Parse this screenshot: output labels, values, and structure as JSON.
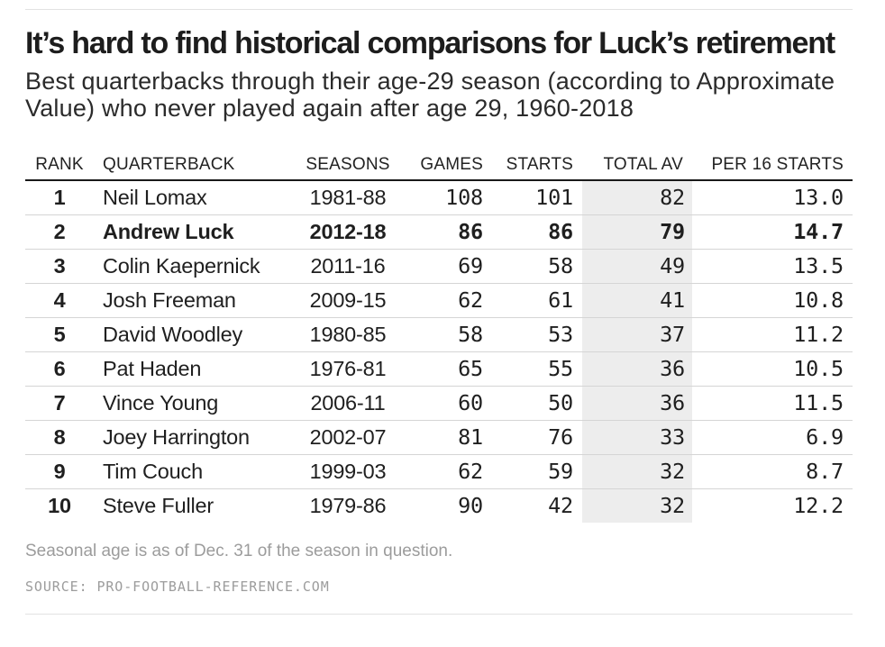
{
  "header": {
    "title": "It’s hard to find historical comparisons for Luck’s retirement",
    "subtitle": "Best quarterbacks through their age-29 season (according to Approximate Value) who never played again after age 29, 1960-2018"
  },
  "table": {
    "columns": [
      "RANK",
      "QUARTERBACK",
      "SEASONS",
      "GAMES",
      "STARTS",
      "TOTAL AV",
      "PER 16 STARTS"
    ],
    "rows": [
      {
        "rank": "1",
        "quarterback": "Neil Lomax",
        "seasons": "1981-88",
        "games": "108",
        "starts": "101",
        "total_av": "82",
        "per16": "13.0",
        "highlight": false
      },
      {
        "rank": "2",
        "quarterback": "Andrew Luck",
        "seasons": "2012-18",
        "games": "86",
        "starts": "86",
        "total_av": "79",
        "per16": "14.7",
        "highlight": true
      },
      {
        "rank": "3",
        "quarterback": "Colin Kaepernick",
        "seasons": "2011-16",
        "games": "69",
        "starts": "58",
        "total_av": "49",
        "per16": "13.5",
        "highlight": false
      },
      {
        "rank": "4",
        "quarterback": "Josh Freeman",
        "seasons": "2009-15",
        "games": "62",
        "starts": "61",
        "total_av": "41",
        "per16": "10.8",
        "highlight": false
      },
      {
        "rank": "5",
        "quarterback": "David Woodley",
        "seasons": "1980-85",
        "games": "58",
        "starts": "53",
        "total_av": "37",
        "per16": "11.2",
        "highlight": false
      },
      {
        "rank": "6",
        "quarterback": "Pat Haden",
        "seasons": "1976-81",
        "games": "65",
        "starts": "55",
        "total_av": "36",
        "per16": "10.5",
        "highlight": false
      },
      {
        "rank": "7",
        "quarterback": "Vince Young",
        "seasons": "2006-11",
        "games": "60",
        "starts": "50",
        "total_av": "36",
        "per16": "11.5",
        "highlight": false
      },
      {
        "rank": "8",
        "quarterback": "Joey Harrington",
        "seasons": "2002-07",
        "games": "81",
        "starts": "76",
        "total_av": "33",
        "per16": "6.9",
        "highlight": false
      },
      {
        "rank": "9",
        "quarterback": "Tim Couch",
        "seasons": "1999-03",
        "games": "62",
        "starts": "59",
        "total_av": "32",
        "per16": "8.7",
        "highlight": false
      },
      {
        "rank": "10",
        "quarterback": "Steve Fuller",
        "seasons": "1979-86",
        "games": "90",
        "starts": "42",
        "total_av": "32",
        "per16": "12.2",
        "highlight": false
      }
    ]
  },
  "footer": {
    "note": "Seasonal age is as of Dec. 31 of the season in question.",
    "source": "SOURCE: PRO-FOOTBALL-REFERENCE.COM"
  },
  "style": {
    "highlight_row": "Andrew Luck",
    "shaded_column": "TOTAL AV",
    "accent_shade": "#ededed",
    "rule_color": "#e2e2e2",
    "text_color": "#222222",
    "muted_color": "#999999"
  },
  "chart_data": {
    "type": "table",
    "title": "It’s hard to find historical comparisons for Luck’s retirement",
    "subtitle": "Best quarterbacks through their age-29 season (according to Approximate Value) who never played again after age 29, 1960-2018",
    "columns": [
      "RANK",
      "QUARTERBACK",
      "SEASONS",
      "GAMES",
      "STARTS",
      "TOTAL AV",
      "PER 16 STARTS"
    ],
    "rows": [
      [
        1,
        "Neil Lomax",
        "1981-88",
        108,
        101,
        82,
        13.0
      ],
      [
        2,
        "Andrew Luck",
        "2012-18",
        86,
        86,
        79,
        14.7
      ],
      [
        3,
        "Colin Kaepernick",
        "2011-16",
        69,
        58,
        49,
        13.5
      ],
      [
        4,
        "Josh Freeman",
        "2009-15",
        62,
        61,
        41,
        10.8
      ],
      [
        5,
        "David Woodley",
        "1980-85",
        58,
        53,
        37,
        11.2
      ],
      [
        6,
        "Pat Haden",
        "1976-81",
        65,
        55,
        36,
        10.5
      ],
      [
        7,
        "Vince Young",
        "2006-11",
        60,
        50,
        36,
        11.5
      ],
      [
        8,
        "Joey Harrington",
        "2002-07",
        81,
        76,
        33,
        6.9
      ],
      [
        9,
        "Tim Couch",
        "1999-03",
        62,
        59,
        32,
        8.7
      ],
      [
        10,
        "Steve Fuller",
        "1979-86",
        90,
        42,
        32,
        12.2
      ]
    ],
    "highlighted_row": 2,
    "shaded_column": "TOTAL AV",
    "footnote": "Seasonal age is as of Dec. 31 of the season in question.",
    "source": "SOURCE: PRO-FOOTBALL-REFERENCE.COM"
  }
}
